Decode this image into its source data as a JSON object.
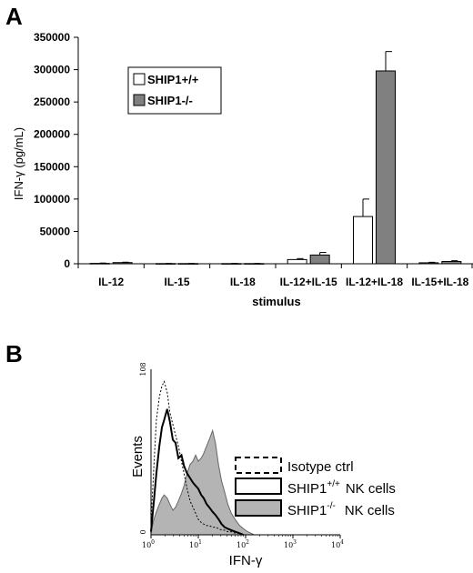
{
  "panel_a_label": "A",
  "panel_b_label": "B",
  "chart_data": [
    {
      "type": "bar",
      "title": "",
      "ylabel": "IFN-γ (pg/mL)",
      "xlabel": "stimulus",
      "ylim": [
        0,
        350000
      ],
      "yticks": [
        "0",
        "50000",
        "100000",
        "150000",
        "200000",
        "250000",
        "300000",
        "350000"
      ],
      "categories": [
        "IL-12",
        "IL-15",
        "IL-18",
        "IL-12+IL-15",
        "IL-12+IL-18",
        "IL-15+IL-18"
      ],
      "series": [
        {
          "name": "SHIP1+/+",
          "color": "#ffffff",
          "values": [
            600,
            300,
            300,
            6500,
            73000,
            1500
          ],
          "errors": [
            500,
            200,
            200,
            1500,
            27000,
            800
          ]
        },
        {
          "name": "SHIP1-/-",
          "color": "#808080",
          "values": [
            1800,
            300,
            300,
            13500,
            298000,
            3500
          ],
          "errors": [
            600,
            200,
            200,
            4000,
            30000,
            1200
          ]
        }
      ],
      "legend_position": "top-left",
      "grid": false
    },
    {
      "type": "histogram",
      "xlabel": "IFN-γ",
      "ylabel": "Events",
      "x_scale": "log",
      "xlim": [
        1,
        10000
      ],
      "ylim": [
        0,
        108
      ],
      "ytick_labels": [
        "0",
        "108"
      ],
      "xtick_labels": [
        {
          "base": "10",
          "exp": "0"
        },
        {
          "base": "10",
          "exp": "1"
        },
        {
          "base": "10",
          "exp": "2"
        },
        {
          "base": "10",
          "exp": "3"
        },
        {
          "base": "10",
          "exp": "4"
        }
      ],
      "legend": [
        {
          "base": "Isotype ctrl",
          "sup": "",
          "suffix": "",
          "style": "dashed"
        },
        {
          "base": "SHIP1",
          "sup": "+/+",
          "suffix": "NK cells",
          "style": "solid"
        },
        {
          "base": "SHIP1",
          "sup": "-/-",
          "suffix": "NK cells",
          "style": "filled"
        }
      ],
      "series": [
        {
          "name": "Isotype ctrl",
          "style": "dashed",
          "x": [
            1.0,
            1.15,
            1.3,
            1.5,
            1.7,
            1.9,
            2.2,
            2.5,
            2.9,
            3.3,
            3.8,
            4.4,
            5.0,
            5.8,
            6.7,
            7.7,
            8.8,
            10,
            11.5,
            13,
            15,
            17,
            20,
            23,
            27,
            31,
            36,
            42,
            50,
            60,
            75,
            90,
            110
          ],
          "y": [
            8,
            45,
            75,
            90,
            97,
            100,
            93,
            80,
            72,
            65,
            58,
            48,
            40,
            30,
            22,
            18,
            14,
            10,
            8,
            7,
            6,
            6,
            5,
            5,
            4,
            3,
            3,
            2,
            2,
            1,
            1,
            0,
            0
          ]
        },
        {
          "name": "SHIP1+/+ NK cells",
          "style": "solid",
          "x": [
            1.0,
            1.15,
            1.3,
            1.5,
            1.7,
            1.9,
            2.2,
            2.5,
            2.9,
            3.3,
            3.8,
            4.4,
            5.0,
            5.8,
            6.7,
            7.7,
            8.8,
            10,
            11.5,
            13,
            15,
            17,
            20,
            23,
            27,
            31,
            36,
            42,
            50,
            60,
            75,
            90
          ],
          "y": [
            2,
            22,
            40,
            58,
            70,
            75,
            82,
            74,
            62,
            60,
            50,
            52,
            45,
            40,
            37,
            34,
            32,
            30,
            26,
            24,
            20,
            18,
            15,
            13,
            10,
            7,
            5,
            4,
            3,
            2,
            1,
            0
          ]
        },
        {
          "name": "SHIP1-/- NK cells",
          "style": "filled",
          "x": [
            1.0,
            1.15,
            1.3,
            1.5,
            1.7,
            1.9,
            2.2,
            2.5,
            2.9,
            3.3,
            3.8,
            4.4,
            5.0,
            5.8,
            6.7,
            7.7,
            8.8,
            10,
            11.5,
            13,
            15,
            17,
            20,
            23,
            27,
            31,
            36,
            42,
            50,
            60,
            75,
            90,
            110,
            130,
            150
          ],
          "y": [
            2,
            10,
            15,
            20,
            24,
            26,
            24,
            20,
            16,
            18,
            22,
            27,
            32,
            40,
            46,
            48,
            52,
            48,
            50,
            53,
            58,
            62,
            68,
            60,
            45,
            35,
            28,
            20,
            14,
            10,
            6,
            4,
            2,
            1,
            0
          ]
        }
      ]
    }
  ]
}
